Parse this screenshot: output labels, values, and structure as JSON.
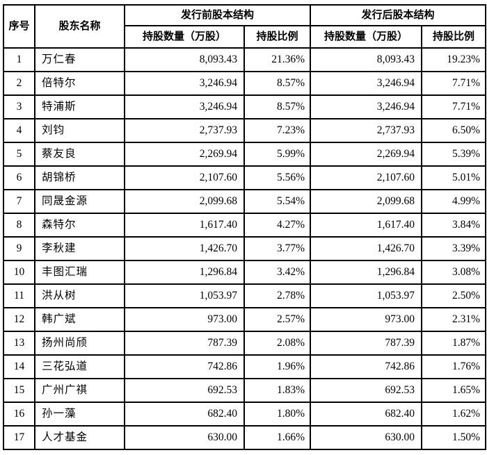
{
  "colors": {
    "border": "#000000",
    "text": "#000000",
    "background": "#ffffff"
  },
  "table": {
    "columns": {
      "index": "序号",
      "shareholder": "股东名称",
      "pre_group": "发行前股本结构",
      "post_group": "发行后股本结构",
      "shares": "持股数量（万股）",
      "ratio": "持股比例"
    },
    "rows": [
      {
        "no": "1",
        "name": "万仁春",
        "pre_shares": "8,093.43",
        "pre_ratio": "21.36%",
        "post_shares": "8,093.43",
        "post_ratio": "19.23%"
      },
      {
        "no": "2",
        "name": "倍特尔",
        "pre_shares": "3,246.94",
        "pre_ratio": "8.57%",
        "post_shares": "3,246.94",
        "post_ratio": "7.71%"
      },
      {
        "no": "3",
        "name": "特浦斯",
        "pre_shares": "3,246.94",
        "pre_ratio": "8.57%",
        "post_shares": "3,246.94",
        "post_ratio": "7.71%"
      },
      {
        "no": "4",
        "name": "刘钧",
        "pre_shares": "2,737.93",
        "pre_ratio": "7.23%",
        "post_shares": "2,737.93",
        "post_ratio": "6.50%"
      },
      {
        "no": "5",
        "name": "蔡友良",
        "pre_shares": "2,269.94",
        "pre_ratio": "5.99%",
        "post_shares": "2,269.94",
        "post_ratio": "5.39%"
      },
      {
        "no": "6",
        "name": "胡锦桥",
        "pre_shares": "2,107.60",
        "pre_ratio": "5.56%",
        "post_shares": "2,107.60",
        "post_ratio": "5.01%"
      },
      {
        "no": "7",
        "name": "同晟金源",
        "pre_shares": "2,099.68",
        "pre_ratio": "5.54%",
        "post_shares": "2,099.68",
        "post_ratio": "4.99%"
      },
      {
        "no": "8",
        "name": "森特尔",
        "pre_shares": "1,617.40",
        "pre_ratio": "4.27%",
        "post_shares": "1,617.40",
        "post_ratio": "3.84%"
      },
      {
        "no": "9",
        "name": "李秋建",
        "pre_shares": "1,426.70",
        "pre_ratio": "3.77%",
        "post_shares": "1,426.70",
        "post_ratio": "3.39%"
      },
      {
        "no": "10",
        "name": "丰图汇瑞",
        "pre_shares": "1,296.84",
        "pre_ratio": "3.42%",
        "post_shares": "1,296.84",
        "post_ratio": "3.08%"
      },
      {
        "no": "11",
        "name": "洪从树",
        "pre_shares": "1,053.97",
        "pre_ratio": "2.78%",
        "post_shares": "1,053.97",
        "post_ratio": "2.50%"
      },
      {
        "no": "12",
        "name": "韩广斌",
        "pre_shares": "973.00",
        "pre_ratio": "2.57%",
        "post_shares": "973.00",
        "post_ratio": "2.31%"
      },
      {
        "no": "13",
        "name": "扬州尚颀",
        "pre_shares": "787.39",
        "pre_ratio": "2.08%",
        "post_shares": "787.39",
        "post_ratio": "1.87%"
      },
      {
        "no": "14",
        "name": "三花弘道",
        "pre_shares": "742.86",
        "pre_ratio": "1.96%",
        "post_shares": "742.86",
        "post_ratio": "1.76%"
      },
      {
        "no": "15",
        "name": "广州广祺",
        "pre_shares": "692.53",
        "pre_ratio": "1.83%",
        "post_shares": "692.53",
        "post_ratio": "1.65%"
      },
      {
        "no": "16",
        "name": "孙一藻",
        "pre_shares": "682.40",
        "pre_ratio": "1.80%",
        "post_shares": "682.40",
        "post_ratio": "1.62%"
      },
      {
        "no": "17",
        "name": "人才基金",
        "pre_shares": "630.00",
        "pre_ratio": "1.66%",
        "post_shares": "630.00",
        "post_ratio": "1.50%"
      }
    ]
  }
}
